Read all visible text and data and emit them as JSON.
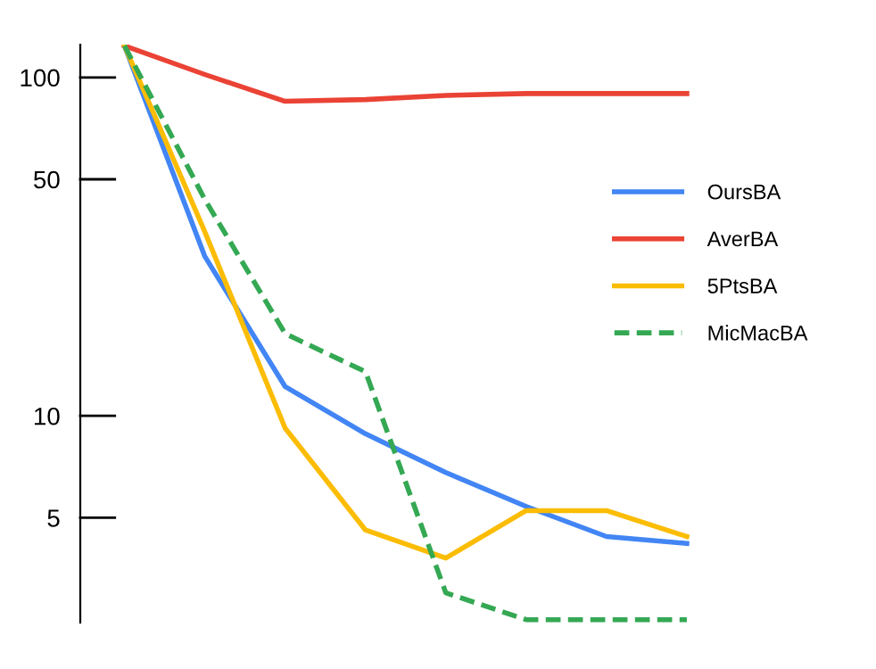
{
  "chart_data": {
    "type": "line",
    "categories": [
      null,
      null,
      null,
      null,
      null,
      null,
      null,
      null
    ],
    "series": [
      {
        "name": "OursBA",
        "color": "#4285f4",
        "values": [
          124,
          29.6,
          12.2,
          8.85,
          6.8,
          5.4,
          4.4,
          4.2
        ]
      },
      {
        "name": "AverBA",
        "color": "#ea4335",
        "values": [
          124,
          102,
          85,
          86,
          88.5,
          89.6,
          89.6,
          89.6
        ]
      },
      {
        "name": "5PtsBA",
        "color": "#fbbc04",
        "values": [
          124,
          35,
          9.2,
          4.6,
          3.8,
          5.25,
          5.25,
          4.4
        ]
      },
      {
        "name": "MicMacBA",
        "color": "#34a853",
        "line_style": "dashed",
        "values": [
          124,
          43.6,
          17.5,
          13.5,
          3.0,
          2.5,
          2.5,
          2.5
        ]
      }
    ],
    "log": "y",
    "ylim": [
      2.45,
      125
    ],
    "yticks": [
      5,
      10,
      50,
      100
    ],
    "grid": false,
    "legend": "right",
    "tick_labels": "y"
  }
}
